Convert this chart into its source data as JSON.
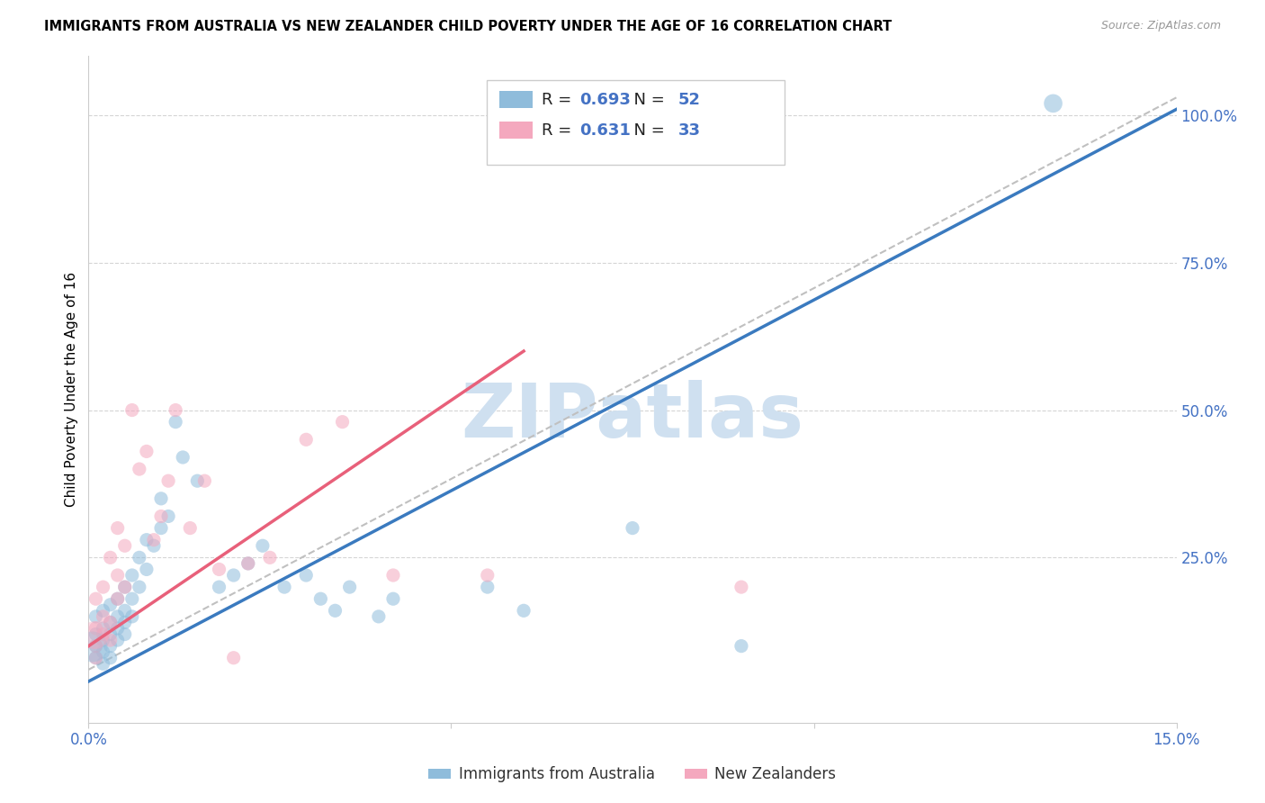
{
  "title": "IMMIGRANTS FROM AUSTRALIA VS NEW ZEALANDER CHILD POVERTY UNDER THE AGE OF 16 CORRELATION CHART",
  "source": "Source: ZipAtlas.com",
  "ylabel": "Child Poverty Under the Age of 16",
  "legend_label_1": "Immigrants from Australia",
  "legend_label_2": "New Zealanders",
  "r1": 0.693,
  "n1": 52,
  "r2": 0.631,
  "n2": 33,
  "xlim": [
    0.0,
    0.15
  ],
  "ylim": [
    -0.03,
    1.1
  ],
  "xticks": [
    0.0,
    0.05,
    0.1,
    0.15
  ],
  "xticklabels": [
    "0.0%",
    "",
    "",
    "15.0%"
  ],
  "yticks_right": [
    0.25,
    0.5,
    0.75,
    1.0
  ],
  "ytick_right_labels": [
    "25.0%",
    "50.0%",
    "75.0%",
    "100.0%"
  ],
  "color_blue": "#8fbcdb",
  "color_pink": "#f4a8be",
  "color_line_blue": "#3a7abf",
  "color_line_pink": "#e8607a",
  "color_ref_line": "#c0c0c0",
  "watermark": "ZIPatlas",
  "watermark_color": "#cfe0f0",
  "blue_line_x0": 0.0,
  "blue_line_y0": 0.04,
  "blue_line_x1": 0.15,
  "blue_line_y1": 1.01,
  "pink_line_x0": 0.0,
  "pink_line_y0": 0.1,
  "pink_line_x1": 0.06,
  "pink_line_y1": 0.6,
  "ref_line_x0": 0.0,
  "ref_line_y0": 0.06,
  "ref_line_x1": 0.15,
  "ref_line_y1": 1.03,
  "australia_x": [
    0.001,
    0.001,
    0.001,
    0.001,
    0.002,
    0.002,
    0.002,
    0.002,
    0.002,
    0.003,
    0.003,
    0.003,
    0.003,
    0.003,
    0.004,
    0.004,
    0.004,
    0.004,
    0.005,
    0.005,
    0.005,
    0.005,
    0.006,
    0.006,
    0.006,
    0.007,
    0.007,
    0.008,
    0.008,
    0.009,
    0.01,
    0.01,
    0.011,
    0.012,
    0.013,
    0.015,
    0.018,
    0.02,
    0.022,
    0.024,
    0.027,
    0.03,
    0.032,
    0.034,
    0.036,
    0.04,
    0.042,
    0.055,
    0.06,
    0.075,
    0.09,
    0.133
  ],
  "australia_y": [
    0.1,
    0.12,
    0.08,
    0.15,
    0.11,
    0.13,
    0.09,
    0.16,
    0.07,
    0.14,
    0.12,
    0.1,
    0.17,
    0.08,
    0.15,
    0.13,
    0.18,
    0.11,
    0.16,
    0.14,
    0.12,
    0.2,
    0.18,
    0.22,
    0.15,
    0.25,
    0.2,
    0.28,
    0.23,
    0.27,
    0.3,
    0.35,
    0.32,
    0.48,
    0.42,
    0.38,
    0.2,
    0.22,
    0.24,
    0.27,
    0.2,
    0.22,
    0.18,
    0.16,
    0.2,
    0.15,
    0.18,
    0.2,
    0.16,
    0.3,
    0.1,
    1.02
  ],
  "nz_x": [
    0.001,
    0.001,
    0.001,
    0.001,
    0.002,
    0.002,
    0.002,
    0.003,
    0.003,
    0.003,
    0.004,
    0.004,
    0.004,
    0.005,
    0.005,
    0.006,
    0.007,
    0.008,
    0.009,
    0.01,
    0.011,
    0.012,
    0.014,
    0.016,
    0.018,
    0.02,
    0.022,
    0.025,
    0.03,
    0.035,
    0.042,
    0.055,
    0.09
  ],
  "nz_y": [
    0.13,
    0.1,
    0.18,
    0.08,
    0.15,
    0.12,
    0.2,
    0.14,
    0.11,
    0.25,
    0.22,
    0.18,
    0.3,
    0.27,
    0.2,
    0.5,
    0.4,
    0.43,
    0.28,
    0.32,
    0.38,
    0.5,
    0.3,
    0.38,
    0.23,
    0.08,
    0.24,
    0.25,
    0.45,
    0.48,
    0.22,
    0.22,
    0.2
  ],
  "aus_big_marker_idx": 51,
  "aus_big_marker_size": 220,
  "nz_big_marker_idx": -1,
  "nz_big_marker_size": 220,
  "default_marker_size": 120
}
